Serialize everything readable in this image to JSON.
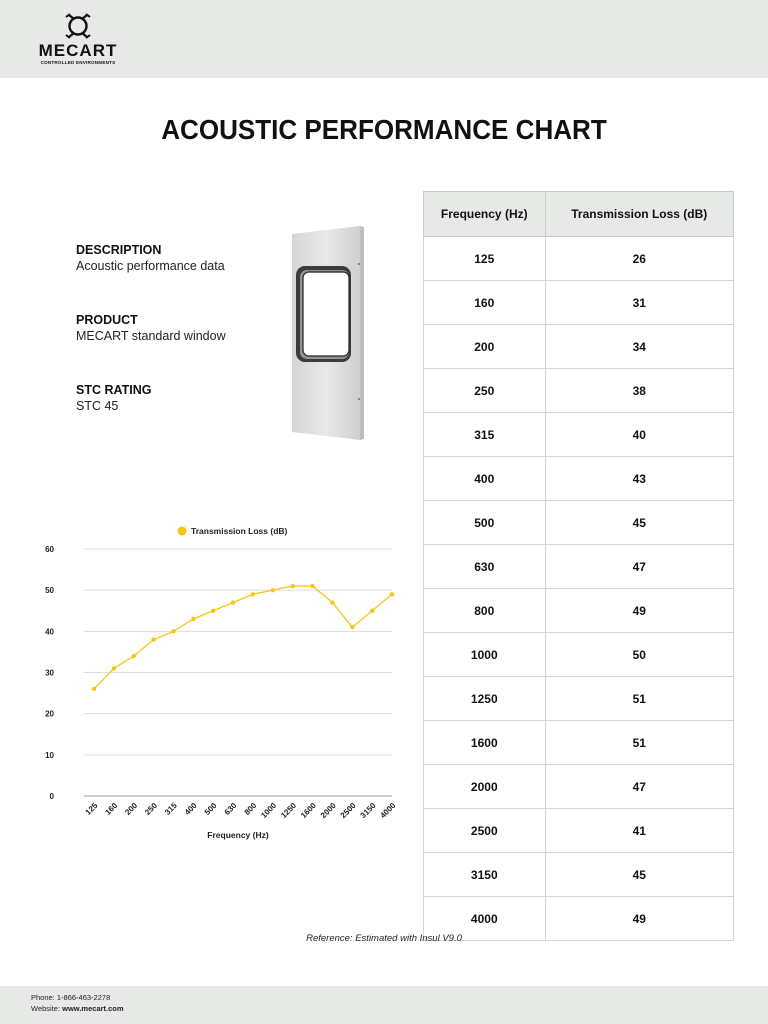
{
  "brand": {
    "name": "MECART",
    "tagline": "CONTROLLED ENVIRONMENTS"
  },
  "title": "ACOUSTIC PERFORMANCE CHART",
  "info": [
    {
      "label": "DESCRIPTION",
      "value": "Acoustic performance data"
    },
    {
      "label": "PRODUCT",
      "value": "MECART standard window"
    },
    {
      "label": "STC RATING",
      "value": "STC 45"
    }
  ],
  "table": {
    "headers": [
      "Frequency (Hz)",
      "Transmission Loss (dB)"
    ],
    "rows": [
      [
        "125",
        "26"
      ],
      [
        "160",
        "31"
      ],
      [
        "200",
        "34"
      ],
      [
        "250",
        "38"
      ],
      [
        "315",
        "40"
      ],
      [
        "400",
        "43"
      ],
      [
        "500",
        "45"
      ],
      [
        "630",
        "47"
      ],
      [
        "800",
        "49"
      ],
      [
        "1000",
        "50"
      ],
      [
        "1250",
        "51"
      ],
      [
        "1600",
        "51"
      ],
      [
        "2000",
        "47"
      ],
      [
        "2500",
        "41"
      ],
      [
        "3150",
        "45"
      ],
      [
        "4000",
        "49"
      ]
    ]
  },
  "chart_data": {
    "type": "line",
    "categories": [
      "125",
      "160",
      "200",
      "250",
      "315",
      "400",
      "500",
      "630",
      "800",
      "1000",
      "1250",
      "1600",
      "2000",
      "2500",
      "3150",
      "4000"
    ],
    "series": [
      {
        "name": "Transmission Loss (dB)",
        "values": [
          26,
          31,
          34,
          38,
          40,
          43,
          45,
          47,
          49,
          50,
          51,
          51,
          47,
          41,
          45,
          49
        ],
        "color": "#f5c518"
      }
    ],
    "xlabel": "Frequency (Hz)",
    "ylabel": "",
    "ylim": [
      0,
      60
    ],
    "yticks": [
      0,
      10,
      20,
      30,
      40,
      50,
      60
    ],
    "grid": true,
    "legend": "top"
  },
  "reference": {
    "prefix": "Reference: ",
    "text": "Estimated with Insul V9.0"
  },
  "footer": {
    "phone_label": "Phone: ",
    "phone": "1-866-463-2278",
    "website_label": "Website: ",
    "website": "www.mecart.com"
  }
}
